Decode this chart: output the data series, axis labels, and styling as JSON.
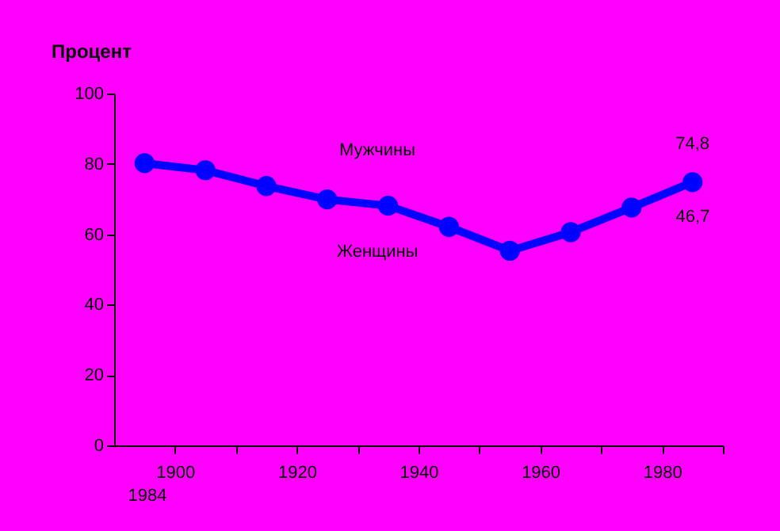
{
  "chart_data": {
    "type": "line",
    "ylabel": "Процент",
    "x": [
      1895,
      1905,
      1915,
      1925,
      1935,
      1945,
      1955,
      1965,
      1975,
      1985
    ],
    "series": [
      {
        "color": "#0000ff",
        "values": [
          80.2,
          78.2,
          73.7,
          69.9,
          68.1,
          62.1,
          55.3,
          60.6,
          67.6,
          74.8
        ]
      }
    ],
    "xlim": [
      1890,
      1990
    ],
    "xticks": [
      1900,
      {
        "value": 1910,
        "label": null
      },
      1920,
      {
        "value": 1930,
        "label": null
      },
      1940,
      {
        "value": 1950,
        "label": null
      },
      1960,
      {
        "value": 1970,
        "label": null
      },
      1980,
      {
        "value": 1990,
        "label": null
      }
    ],
    "ylim": [
      0,
      100
    ],
    "yticks": [
      0,
      20,
      40,
      60,
      80,
      100
    ],
    "grid": false,
    "marker": "circle",
    "line_style": "solid",
    "annotations": [
      {
        "text": "74,8",
        "x": 1985,
        "y": 74.8
      },
      "Мужчины",
      "Женщины",
      "46,7",
      "1984"
    ]
  }
}
